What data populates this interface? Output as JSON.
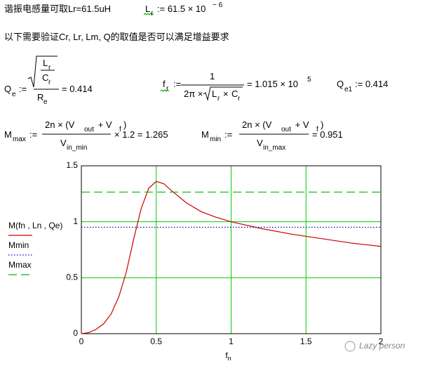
{
  "header": {
    "title": "谐振电感量可取Lr=61.5uH",
    "lr_def": [
      "L",
      "r",
      ":= 61.5 × 10",
      "− 6"
    ]
  },
  "note": "以下需要验证Cr, Lr, Lm, Q的取值是否可以满足增益要求",
  "qe": [
    "Q",
    "e",
    ":=",
    "L",
    "r",
    "C",
    "r",
    "R",
    "e",
    "= 0.414"
  ],
  "fr": [
    "f",
    "r",
    ":=",
    "1",
    "2π ×",
    "L",
    "r",
    "×",
    "C",
    "r",
    "= 1.015 × 10",
    "5"
  ],
  "qe1": [
    "Q",
    "e1",
    ":= 0.414"
  ],
  "mmax": [
    "M",
    "max",
    ":=",
    "2n × (V",
    "out",
    " + V",
    "f",
    ")",
    "V",
    "in_min",
    "× 1.2 = 1.265"
  ],
  "mmin": [
    "M",
    "min",
    ":=",
    "2n × (V",
    "out",
    " + V",
    "f",
    ")",
    "V",
    "in_max",
    "= 0.951"
  ],
  "watermark": "Lazy person",
  "chart_data": {
    "type": "line",
    "x_label": [
      "f",
      "n"
    ],
    "series": [
      {
        "name": "M(fn , Ln , Qe)",
        "color": "#cc0000",
        "style": "solid",
        "x": [
          0,
          0.05,
          0.1,
          0.15,
          0.2,
          0.25,
          0.3,
          0.35,
          0.4,
          0.45,
          0.5,
          0.55,
          0.6,
          0.7,
          0.8,
          0.9,
          1.0,
          1.2,
          1.4,
          1.6,
          1.8,
          2.0
        ],
        "values": [
          0,
          0.01,
          0.04,
          0.09,
          0.18,
          0.33,
          0.55,
          0.85,
          1.12,
          1.3,
          1.36,
          1.34,
          1.28,
          1.17,
          1.09,
          1.04,
          1.0,
          0.94,
          0.89,
          0.85,
          0.81,
          0.78
        ]
      },
      {
        "name": "Mmin",
        "color": "#0000cc",
        "style": "dotted",
        "x": [
          0,
          2
        ],
        "values": [
          0.951,
          0.951
        ]
      },
      {
        "name": "Mmax",
        "color": "#00bb00",
        "style": "dashed",
        "x": [
          0,
          2
        ],
        "values": [
          1.265,
          1.265
        ]
      }
    ],
    "xlim": [
      0,
      2
    ],
    "ylim": [
      0,
      1.5
    ],
    "xticks": [
      0,
      0.5,
      1,
      1.5,
      2
    ],
    "yticks": [
      0,
      0.5,
      1,
      1.5
    ],
    "grid": true,
    "grid_color": "#00cc00"
  }
}
